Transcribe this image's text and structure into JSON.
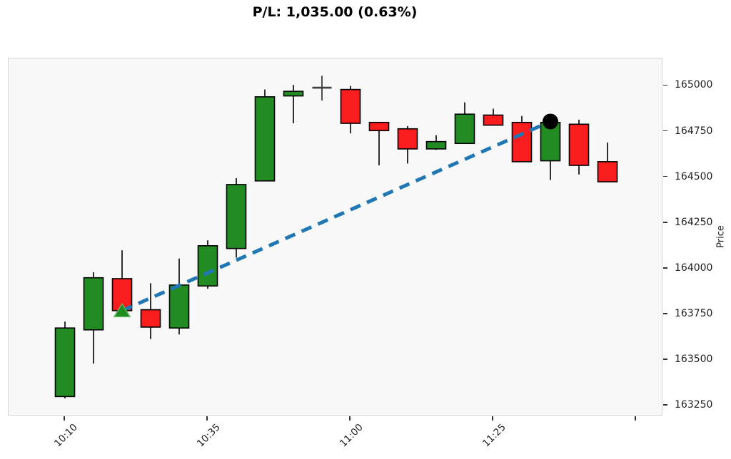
{
  "chart_data": {
    "type": "candlestick",
    "title": "P/L: 1,035.00 (0.63%)",
    "ylabel": "Price",
    "grid": false,
    "legend": "none",
    "y_axis_side": "right",
    "ylim": [
      163200,
      165150
    ],
    "y_ticks": [
      163250,
      163500,
      163750,
      164000,
      164250,
      164500,
      164750,
      165000
    ],
    "x_ticks": [
      {
        "index": 0,
        "label": "10:10"
      },
      {
        "index": 5,
        "label": "10:35"
      },
      {
        "index": 10,
        "label": "11:00"
      },
      {
        "index": 15,
        "label": "11:25"
      },
      {
        "index": 20,
        "label": ""
      }
    ],
    "candles": [
      {
        "open": 163300,
        "high": 163710,
        "low": 163290,
        "close": 163675
      },
      {
        "open": 163665,
        "high": 163980,
        "low": 163480,
        "close": 163950
      },
      {
        "open": 163945,
        "high": 164100,
        "low": 163740,
        "close": 163770
      },
      {
        "open": 163775,
        "high": 163920,
        "low": 163615,
        "close": 163680
      },
      {
        "open": 163675,
        "high": 164055,
        "low": 163640,
        "close": 163910
      },
      {
        "open": 163905,
        "high": 164155,
        "low": 163890,
        "close": 164125
      },
      {
        "open": 164110,
        "high": 164495,
        "low": 164060,
        "close": 164460
      },
      {
        "open": 164480,
        "high": 164980,
        "low": 164480,
        "close": 164940
      },
      {
        "open": 164945,
        "high": 165005,
        "low": 164795,
        "close": 164970
      },
      {
        "open": 164990,
        "high": 165055,
        "low": 164920,
        "close": 164990
      },
      {
        "open": 164980,
        "high": 165000,
        "low": 164740,
        "close": 164795
      },
      {
        "open": 164800,
        "high": 164800,
        "low": 164565,
        "close": 164755
      },
      {
        "open": 164765,
        "high": 164780,
        "low": 164575,
        "close": 164655
      },
      {
        "open": 164655,
        "high": 164730,
        "low": 164650,
        "close": 164695
      },
      {
        "open": 164685,
        "high": 164910,
        "low": 164685,
        "close": 164845
      },
      {
        "open": 164840,
        "high": 164875,
        "low": 164785,
        "close": 164785
      },
      {
        "open": 164800,
        "high": 164835,
        "low": 164585,
        "close": 164585
      },
      {
        "open": 164590,
        "high": 164815,
        "low": 164485,
        "close": 164800
      },
      {
        "open": 164790,
        "high": 164815,
        "low": 164515,
        "close": 164565
      },
      {
        "open": 164585,
        "high": 164690,
        "low": 164475,
        "close": 164475
      }
    ],
    "trade": {
      "entry": {
        "candle_index": 2,
        "price": 163770,
        "marker": "triangle-up",
        "color": "#1e8c1e"
      },
      "exit": {
        "candle_index": 17,
        "price": 164805,
        "marker": "circle",
        "color": "#000000"
      },
      "connector": {
        "style": "dashed",
        "color": "#1f77b4"
      }
    },
    "colors": {
      "up": "#228B22",
      "down": "#f91d1d",
      "edge": "#000000",
      "wick": "#1a1a1a",
      "doji": "#3d3d3d",
      "plot_bg": "#f8f8f8",
      "figure_bg": "#ffffff",
      "spine": "#d4d4d4",
      "tick": "#333333",
      "text": "#1f1f1f",
      "trend_line": "#1f77b4",
      "entry_marker": "#1e8c1e",
      "entry_marker_edge": "#62b562",
      "exit_marker": "#000000"
    }
  }
}
